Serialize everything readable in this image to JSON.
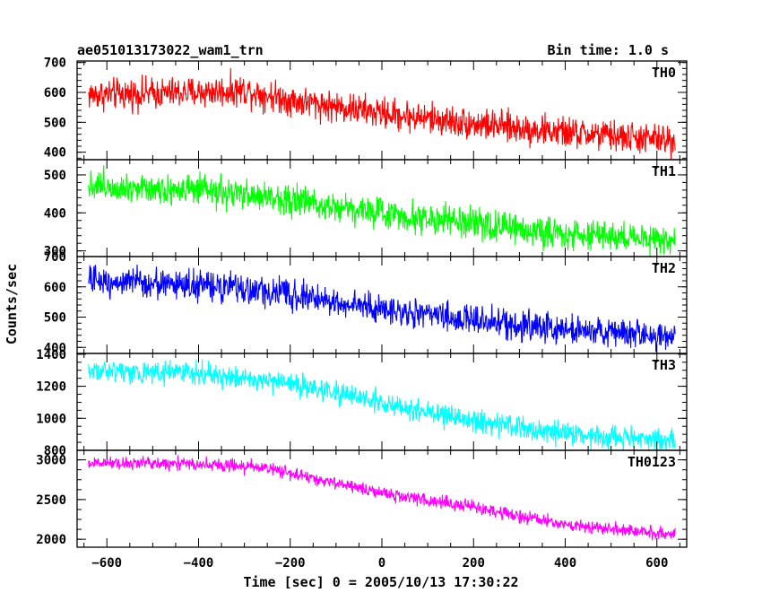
{
  "header": {
    "title": "ae051013173022_wam1_trn",
    "bin_time": "Bin time: 1.0 s"
  },
  "chart_data": {
    "type": "line",
    "title": "ae051013173022_wam1_trn",
    "xlabel": "Time [sec] 0 = 2005/10/13 17:30:22",
    "ylabel": "Counts/sec",
    "xlim": [
      -665,
      665
    ],
    "xticks": [
      -600,
      -400,
      -200,
      0,
      200,
      400,
      600
    ],
    "grid": false,
    "panels": [
      {
        "name": "TH0",
        "color": "#ff0000",
        "ylim": [
          375,
          705
        ],
        "yticks": [
          400,
          500,
          600,
          700
        ],
        "trend_x": [
          -640,
          -400,
          -300,
          -200,
          0,
          200,
          400,
          640
        ],
        "trend_y": [
          592,
          600,
          608,
          575,
          530,
          495,
          465,
          438
        ],
        "noise": 45
      },
      {
        "name": "TH1",
        "color": "#00ff00",
        "ylim": [
          285,
          540
        ],
        "yticks": [
          300,
          400,
          500
        ],
        "trend_x": [
          -640,
          -400,
          -200,
          0,
          200,
          400,
          640
        ],
        "trend_y": [
          475,
          458,
          435,
          400,
          370,
          345,
          328
        ],
        "noise": 35
      },
      {
        "name": "TH2",
        "color": "#0000ff",
        "ylim": [
          380,
          700
        ],
        "yticks": [
          400,
          500,
          600,
          700
        ],
        "trend_x": [
          -640,
          -400,
          -200,
          0,
          200,
          400,
          640
        ],
        "trend_y": [
          622,
          605,
          575,
          525,
          490,
          460,
          435
        ],
        "noise": 42
      },
      {
        "name": "TH3",
        "color": "#00ffff",
        "ylim": [
          800,
          1405
        ],
        "yticks": [
          800,
          1000,
          1200,
          1400
        ],
        "trend_x": [
          -640,
          -400,
          -200,
          0,
          200,
          400,
          640
        ],
        "trend_y": [
          1300,
          1280,
          1215,
          1100,
          980,
          900,
          860
        ],
        "noise": 60
      },
      {
        "name": "TH0123",
        "color": "#ff00ff",
        "ylim": [
          1900,
          3120
        ],
        "yticks": [
          2000,
          2500,
          3000
        ],
        "trend_x": [
          -640,
          -400,
          -250,
          -100,
          0,
          200,
          400,
          640
        ],
        "trend_y": [
          2960,
          2950,
          2900,
          2700,
          2580,
          2400,
          2180,
          2060
        ],
        "noise": 70
      }
    ]
  }
}
